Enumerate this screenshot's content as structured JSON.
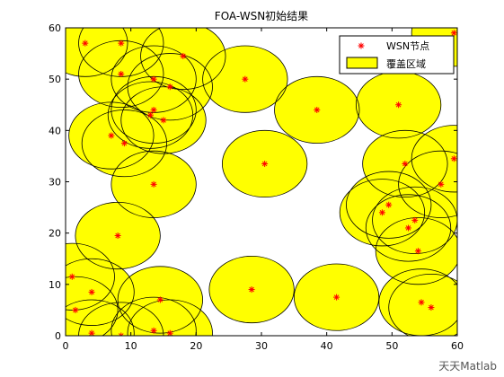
{
  "chart_data": {
    "type": "scatter",
    "title": "FOA-WSN初始结果",
    "xlabel": "",
    "ylabel": "",
    "xlim": [
      0,
      60
    ],
    "ylim": [
      0,
      60
    ],
    "xticks": [
      0,
      10,
      20,
      30,
      40,
      50,
      60
    ],
    "yticks": [
      0,
      10,
      20,
      30,
      40,
      50,
      60
    ],
    "coverage_radius": 6.5,
    "grid": false,
    "legend_position": "top-right",
    "series": [
      {
        "name": "WSN节点",
        "marker": "*",
        "color": "#ff0000",
        "points": [
          [
            3,
            57
          ],
          [
            8.5,
            57
          ],
          [
            18,
            54.5
          ],
          [
            8.5,
            51
          ],
          [
            13.5,
            50
          ],
          [
            16,
            48.5
          ],
          [
            27.5,
            50
          ],
          [
            38.5,
            44
          ],
          [
            13.5,
            44
          ],
          [
            13,
            43
          ],
          [
            15,
            42
          ],
          [
            7,
            39
          ],
          [
            9,
            37.5
          ],
          [
            13.5,
            29.5
          ],
          [
            30.5,
            33.5
          ],
          [
            8,
            19.5
          ],
          [
            1,
            11.5
          ],
          [
            4,
            8.5
          ],
          [
            1.5,
            5
          ],
          [
            4,
            0.5
          ],
          [
            8.5,
            0
          ],
          [
            14.5,
            7
          ],
          [
            13.5,
            1
          ],
          [
            16,
            0.5
          ],
          [
            28.5,
            9
          ],
          [
            41.5,
            7.5
          ],
          [
            51,
            45
          ],
          [
            52,
            33.5
          ],
          [
            59.5,
            34.5
          ],
          [
            57.5,
            29.5
          ],
          [
            49.5,
            25.5
          ],
          [
            48.5,
            24
          ],
          [
            53.5,
            22.5
          ],
          [
            52.5,
            21
          ],
          [
            54,
            16.5
          ],
          [
            54.5,
            6.5
          ],
          [
            56,
            5.5
          ],
          [
            59.5,
            59
          ]
        ]
      },
      {
        "name": "覆盖区域",
        "fill": "#ffff00",
        "stroke": "#000000"
      }
    ]
  },
  "watermark": "天天Matlab"
}
